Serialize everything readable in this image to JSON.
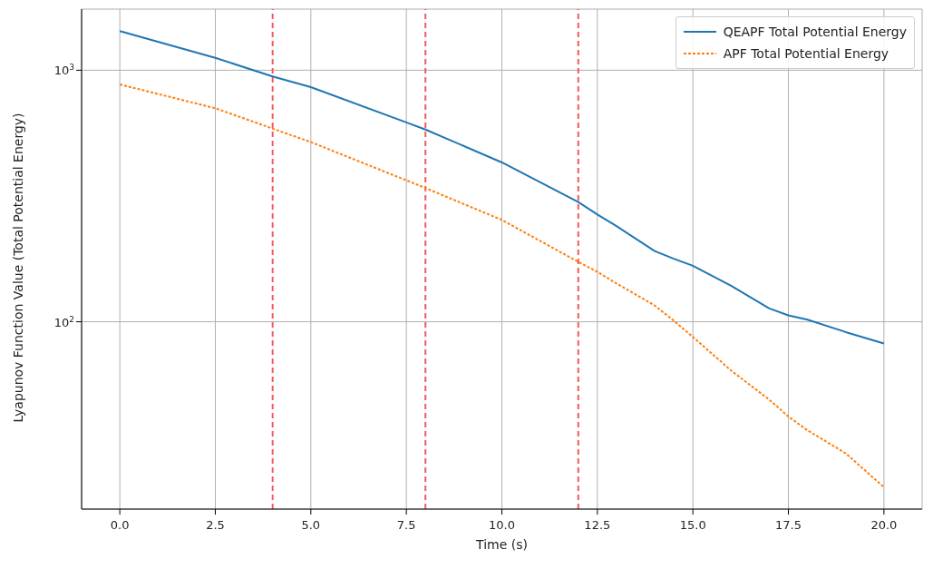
{
  "chart_data": {
    "type": "line",
    "xlabel": "Time (s)",
    "ylabel": "Lyapunov Function Value (Total Potential Energy)",
    "log": "y",
    "grid": true,
    "legend": "top right",
    "marker": "none",
    "xlim": [
      -1,
      21
    ],
    "xticks": [
      {
        "value": 0,
        "label": "0.0"
      },
      {
        "value": 2.5,
        "label": "2.5"
      },
      {
        "value": 5,
        "label": "5.0"
      },
      {
        "value": 7.5,
        "label": "7.5"
      },
      {
        "value": 10,
        "label": "10.0"
      },
      {
        "value": 12.5,
        "label": "12.5"
      },
      {
        "value": 15,
        "label": "15.0"
      },
      {
        "value": 17.5,
        "label": "17.5"
      },
      {
        "value": 20,
        "label": "20.0"
      }
    ],
    "ylim": [
      18,
      1750
    ],
    "yticks": [
      {
        "value": 100,
        "label": "10$^{2}$"
      },
      {
        "value": 1000,
        "label": "10$^{3}$"
      }
    ],
    "x": [
      0,
      2.5,
      4,
      5,
      7.5,
      8,
      10,
      12,
      12.5,
      13,
      14,
      14.5,
      15,
      16,
      17,
      17.5,
      18,
      19,
      20
    ],
    "series": [
      {
        "name": "QEAPF Total Potential Energy",
        "color": "#1f77b4",
        "line_style": "solid",
        "values": [
          1430,
          1120,
          944,
          857,
          620,
          581,
          430,
          299,
          267,
          240,
          191,
          178,
          167,
          139,
          113,
          106,
          102,
          91,
          82
        ]
      },
      {
        "name": "APF Total Potential Energy",
        "color": "#ff7f0e",
        "line_style": "dotted",
        "values": [
          878,
          706,
          586,
          518,
          365,
          340,
          254,
          173,
          158,
          142,
          116,
          101,
          87,
          64,
          49,
          42,
          37,
          30,
          22
        ]
      }
    ],
    "ref_lines": [
      {
        "axis": "x",
        "value": 4,
        "color": "#f25a5a",
        "line_style": "dashed"
      },
      {
        "axis": "x",
        "value": 8,
        "color": "#f25a5a",
        "line_style": "dashed"
      },
      {
        "axis": "x",
        "value": 12,
        "color": "#f25a5a",
        "line_style": "dashed"
      }
    ]
  }
}
